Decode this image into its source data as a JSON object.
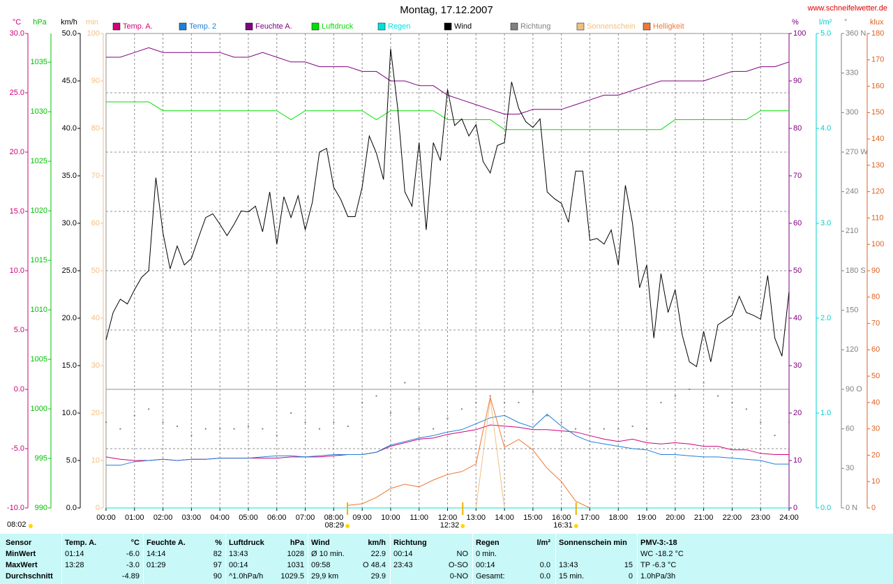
{
  "title": "Montag, 17.12.2007",
  "website": "www.schneifelwetter.de",
  "chart_data": {
    "type": "line",
    "x": [
      0,
      0.5,
      1,
      1.5,
      2,
      2.5,
      3,
      3.5,
      4,
      4.5,
      5,
      5.5,
      6,
      6.5,
      7,
      7.5,
      8,
      8.5,
      9,
      9.5,
      10,
      10.5,
      11,
      11.5,
      12,
      12.5,
      13,
      13.5,
      14,
      14.5,
      15,
      15.5,
      16,
      16.5,
      17,
      17.5,
      18,
      18.5,
      19,
      19.5,
      20,
      20.5,
      21,
      21.5,
      22,
      22.5,
      23,
      23.5,
      24
    ],
    "xlim": [
      0,
      24
    ],
    "xticks": [
      {
        "value": 0,
        "label": "00:00"
      },
      {
        "value": 1,
        "label": "01:00"
      },
      {
        "value": 2,
        "label": "02:00"
      },
      {
        "value": 3,
        "label": "03:00"
      },
      {
        "value": 4,
        "label": "04:00"
      },
      {
        "value": 5,
        "label": "05:00"
      },
      {
        "value": 6,
        "label": "06:00"
      },
      {
        "value": 7,
        "label": "07:00"
      },
      {
        "value": 8,
        "label": "08:00"
      },
      {
        "value": 9,
        "label": "09:00"
      },
      {
        "value": 10,
        "label": "10:00"
      },
      {
        "value": 11,
        "label": "11:00"
      },
      {
        "value": 12,
        "label": "12:00"
      },
      {
        "value": 13,
        "label": "13:00"
      },
      {
        "value": 14,
        "label": "14:00"
      },
      {
        "value": 15,
        "label": "15:00"
      },
      {
        "value": 16,
        "label": "16:00"
      },
      {
        "value": 17,
        "label": "17:00"
      },
      {
        "value": 18,
        "label": "18:00"
      },
      {
        "value": 19,
        "label": "19:00"
      },
      {
        "value": 20,
        "label": "20:00"
      },
      {
        "value": 21,
        "label": "21:00"
      },
      {
        "value": 22,
        "label": "22:00"
      },
      {
        "value": 23,
        "label": "23:00"
      },
      {
        "value": 24,
        "label": "24:00"
      }
    ],
    "xgrid": true,
    "axes": {
      "temp": {
        "label": "°C",
        "color": "#d0007a",
        "grid": true,
        "lim": [
          -10,
          30
        ],
        "ticks": [
          {
            "value": 30,
            "label": "30.0"
          },
          {
            "value": 25,
            "label": "25.0"
          },
          {
            "value": 20,
            "label": "20.0"
          },
          {
            "value": 15,
            "label": "15.0"
          },
          {
            "value": 10,
            "label": "10.0"
          },
          {
            "value": 5,
            "label": "5.0"
          },
          {
            "value": 0,
            "label": "0.0"
          },
          {
            "value": -5,
            "label": "-5.0"
          },
          {
            "value": -10,
            "label": "-10.0"
          }
        ]
      },
      "pressure": {
        "label": "hPa",
        "color": "#00c000",
        "lim": [
          990,
          1037.9
        ],
        "ticks": [
          1035,
          1030,
          1025,
          1020,
          1015,
          1010,
          1005,
          1000,
          995,
          990
        ]
      },
      "wind": {
        "label": "km/h",
        "color": "#000000",
        "lim": [
          0,
          50
        ],
        "ticks": [
          {
            "value": 50,
            "label": "50.0"
          },
          {
            "value": 45,
            "label": "45.0"
          },
          {
            "value": 40,
            "label": "40.0"
          },
          {
            "value": 35,
            "label": "35.0"
          },
          {
            "value": 30,
            "label": "30.0"
          },
          {
            "value": 25,
            "label": "25.0"
          },
          {
            "value": 20,
            "label": "20.0"
          },
          {
            "value": 15,
            "label": "15.0"
          },
          {
            "value": 10,
            "label": "10.0"
          },
          {
            "value": 5,
            "label": "5.0"
          },
          {
            "value": 0,
            "label": "0.0"
          }
        ]
      },
      "sun": {
        "label": "min",
        "color": "#f0c080",
        "lim": [
          0,
          100
        ],
        "ticks": [
          100,
          90,
          80,
          70,
          60,
          50,
          40,
          30,
          20,
          10,
          0
        ]
      },
      "humidity": {
        "label": "%",
        "color": "#800080",
        "lim": [
          0,
          100
        ],
        "ticks": [
          100,
          90,
          80,
          70,
          60,
          50,
          40,
          30,
          20,
          10,
          0
        ]
      },
      "rain": {
        "label": "l/m²",
        "color": "#00d0d0",
        "lim": [
          0,
          5
        ],
        "ticks": [
          {
            "value": 5,
            "label": "5.0"
          },
          {
            "value": 4,
            "label": "4.0"
          },
          {
            "value": 3,
            "label": "3.0"
          },
          {
            "value": 2,
            "label": "2.0"
          },
          {
            "value": 1,
            "label": "1.0"
          },
          {
            "value": 0,
            "label": "0.0"
          }
        ]
      },
      "direction": {
        "label": "°",
        "color": "#808080",
        "lim": [
          0,
          360
        ],
        "ticks": [
          {
            "value": 360,
            "label": "360 N"
          },
          330,
          300,
          {
            "value": 270,
            "label": "270 W"
          },
          240,
          210,
          {
            "value": 180,
            "label": "180 S"
          },
          150,
          120,
          {
            "value": 90,
            "label": "90 O"
          },
          60,
          30,
          {
            "value": 0,
            "label": "0 N"
          }
        ]
      },
      "light": {
        "label": "klux",
        "color": "#e06020",
        "lim": [
          0,
          180
        ],
        "ticks": [
          180,
          170,
          160,
          150,
          140,
          130,
          120,
          110,
          100,
          90,
          80,
          70,
          60,
          50,
          40,
          30,
          20,
          10,
          0
        ]
      }
    },
    "series": [
      {
        "name": "Temp. A.",
        "color": "#d0007a",
        "axis": "temp",
        "values": [
          -5.7,
          -5.9,
          -6.0,
          -6.0,
          -5.9,
          -6.0,
          -5.9,
          -5.9,
          -5.8,
          -5.8,
          -5.8,
          -5.8,
          -5.8,
          -5.7,
          -5.7,
          -5.7,
          -5.6,
          -5.5,
          -5.5,
          -5.3,
          -4.8,
          -4.5,
          -4.2,
          -4.1,
          -3.8,
          -3.6,
          -3.4,
          -3.0,
          -3.1,
          -3.2,
          -3.4,
          -3.4,
          -3.5,
          -3.6,
          -3.9,
          -4.2,
          -4.4,
          -4.2,
          -4.5,
          -4.6,
          -4.5,
          -4.6,
          -4.8,
          -4.8,
          -5.1,
          -5.1,
          -5.4,
          -5.5,
          -5.5
        ]
      },
      {
        "name": "Temp. 2",
        "color": "#1e7fd8",
        "axis": "temp",
        "values": [
          -6.4,
          -6.4,
          -6.1,
          -6.0,
          -5.9,
          -6.0,
          -5.9,
          -5.9,
          -5.8,
          -5.8,
          -5.8,
          -5.7,
          -5.6,
          -5.6,
          -5.7,
          -5.6,
          -5.5,
          -5.5,
          -5.5,
          -5.3,
          -4.7,
          -4.4,
          -4.1,
          -3.9,
          -3.6,
          -3.4,
          -2.9,
          -2.4,
          -2.2,
          -2.8,
          -3.2,
          -2.1,
          -3.1,
          -3.9,
          -4.4,
          -4.6,
          -4.8,
          -5.0,
          -5.1,
          -5.5,
          -5.5,
          -5.6,
          -5.7,
          -5.7,
          -5.8,
          -5.9,
          -6.0,
          -6.3,
          -6.3
        ]
      },
      {
        "name": "Feuchte A.",
        "color": "#800080",
        "axis": "humidity",
        "values": [
          95,
          95,
          96,
          97,
          96,
          96,
          96,
          96,
          96,
          95,
          95,
          96,
          95,
          94,
          94,
          93,
          93,
          93,
          92,
          92,
          90,
          90,
          89,
          89,
          87,
          86,
          85,
          84,
          83,
          83,
          84,
          84,
          84,
          85,
          86,
          87,
          87,
          88,
          89,
          90,
          90,
          90,
          90,
          91,
          92,
          92,
          93,
          93,
          94
        ]
      },
      {
        "name": "Luftdruck",
        "color": "#00e000",
        "axis": "pressure",
        "values": [
          1031.0,
          1031.0,
          1031.0,
          1031.0,
          1030.1,
          1030.1,
          1030.1,
          1030.1,
          1030.1,
          1030.1,
          1030.1,
          1030.1,
          1030.1,
          1029.2,
          1030.1,
          1030.1,
          1030.1,
          1030.1,
          1030.1,
          1029.2,
          1030.1,
          1030.1,
          1030.1,
          1030.1,
          1029.2,
          1029.2,
          1029.2,
          1029.2,
          1028.2,
          1028.2,
          1028.2,
          1028.2,
          1028.2,
          1028.2,
          1028.2,
          1028.2,
          1028.2,
          1028.2,
          1028.2,
          1028.2,
          1029.2,
          1029.2,
          1029.2,
          1029.2,
          1029.2,
          1029.2,
          1030.1,
          1030.1,
          1030.1
        ]
      },
      {
        "name": "Regen",
        "color": "#00e0e0",
        "axis": "rain",
        "values": [
          0,
          0,
          0,
          0,
          0,
          0,
          0,
          0,
          0,
          0,
          0,
          0,
          0,
          0,
          0,
          0,
          0,
          0,
          0,
          0,
          0,
          0,
          0,
          0,
          0,
          0,
          0,
          0,
          0,
          0,
          0,
          0,
          0,
          0,
          0,
          0,
          0,
          0,
          0,
          0,
          0,
          0,
          0,
          0,
          0,
          0,
          0,
          0,
          0
        ]
      },
      {
        "name": "Wind",
        "color": "#000000",
        "axis": "wind",
        "x": [
          0,
          0.25,
          0.5,
          0.75,
          1,
          1.25,
          1.5,
          1.75,
          2,
          2.25,
          2.5,
          2.75,
          3,
          3.25,
          3.5,
          3.75,
          4,
          4.25,
          4.5,
          4.75,
          5,
          5.25,
          5.5,
          5.75,
          6,
          6.25,
          6.5,
          6.75,
          7,
          7.25,
          7.5,
          7.75,
          8,
          8.25,
          8.5,
          8.75,
          9,
          9.25,
          9.5,
          9.75,
          10,
          10.25,
          10.5,
          10.75,
          11,
          11.25,
          11.5,
          11.75,
          12,
          12.25,
          12.5,
          12.75,
          13,
          13.25,
          13.5,
          13.75,
          14,
          14.25,
          14.5,
          14.75,
          15,
          15.25,
          15.5,
          15.75,
          16,
          16.25,
          16.5,
          16.75,
          17,
          17.25,
          17.5,
          17.75,
          18,
          18.25,
          18.5,
          18.75,
          19,
          19.25,
          19.5,
          19.75,
          20,
          20.25,
          20.5,
          20.75,
          21,
          21.25,
          21.5,
          21.75,
          22,
          22.25,
          22.5,
          22.75,
          23,
          23.25,
          23.5,
          23.75,
          24
        ],
        "values": [
          17.7,
          20.6,
          22.0,
          21.5,
          23.0,
          24.3,
          25.0,
          34.8,
          29.0,
          25.2,
          27.6,
          25.6,
          26.3,
          28.5,
          30.6,
          31.0,
          29.9,
          28.7,
          29.9,
          31.3,
          31.2,
          31.8,
          29.1,
          33.3,
          27.8,
          32.8,
          30.6,
          32.9,
          29.3,
          32.2,
          37.5,
          37.9,
          33.8,
          32.5,
          30.7,
          30.7,
          33.8,
          39.2,
          37.4,
          34.6,
          48.4,
          42.1,
          33.3,
          31.8,
          38.5,
          29.3,
          38.5,
          36.6,
          44.1,
          40.3,
          41.0,
          39.2,
          40.4,
          36.5,
          35.3,
          38.2,
          38.5,
          44.9,
          42.1,
          40.7,
          40.1,
          41.0,
          33.3,
          32.6,
          32.1,
          30.1,
          35.5,
          35.5,
          28.2,
          28.4,
          27.8,
          29.3,
          25.6,
          34.0,
          30.0,
          23.2,
          25.6,
          17.9,
          24.7,
          20.6,
          23.0,
          18.2,
          15.4,
          14.9,
          18.6,
          15.4,
          19.3,
          19.8,
          20.3,
          22.3,
          20.6,
          20.3,
          19.9,
          24.5,
          17.9,
          16.0,
          22.8
        ]
      },
      {
        "name": "Richtung",
        "color": "#808080",
        "axis": "direction",
        "marker": "dot",
        "values": [
          65,
          60,
          70,
          75,
          65,
          62,
          55,
          60,
          60,
          60,
          62,
          60,
          55,
          72,
          65,
          60,
          65,
          62,
          80,
          85,
          72,
          95,
          75,
          60,
          68,
          75,
          80,
          85,
          80,
          80,
          88,
          70,
          65,
          60,
          60,
          60,
          60,
          62,
          60,
          80,
          85,
          90,
          95,
          85,
          80,
          75,
          65,
          55,
          65
        ]
      },
      {
        "name": "Sonnenschein",
        "color": "#f0c080",
        "axis": "sun",
        "values": [
          null,
          null,
          null,
          null,
          null,
          null,
          null,
          null,
          null,
          null,
          null,
          null,
          null,
          null,
          null,
          null,
          null,
          null,
          null,
          null,
          null,
          null,
          null,
          null,
          null,
          null,
          0,
          23,
          0,
          null,
          null,
          null,
          null,
          null,
          null,
          null,
          null,
          null,
          null,
          null,
          null,
          null,
          null,
          null,
          null,
          null,
          null,
          null,
          null
        ]
      },
      {
        "name": "Helligkeit",
        "color": "#f07838",
        "axis": "light",
        "values": [
          null,
          null,
          null,
          null,
          null,
          null,
          null,
          null,
          null,
          null,
          null,
          null,
          null,
          null,
          null,
          null,
          null,
          1,
          1.6,
          4,
          7.4,
          9,
          8,
          10.6,
          12.7,
          13.8,
          16.7,
          42,
          23,
          26,
          22,
          15,
          10,
          2.6,
          0,
          null,
          null,
          null,
          null,
          null,
          null,
          null,
          null,
          null,
          null,
          null,
          null,
          null,
          null
        ]
      }
    ],
    "annotations": [
      {
        "x": 8.4833,
        "label": "08:29"
      },
      {
        "x": 12.5333,
        "label": "12:32"
      },
      {
        "x": 16.5167,
        "label": "16:31"
      }
    ],
    "left_time": "08:02"
  },
  "table": {
    "header": {
      "label": "Sensor",
      "columns": [
        {
          "left": "Temp. A.",
          "right": "°C"
        },
        {
          "left": "Feuchte A.",
          "right": "%"
        },
        {
          "left": "Luftdruck",
          "right": "hPa"
        },
        {
          "left": "Wind",
          "right": "km/h"
        },
        {
          "left": "Richtung"
        },
        {
          "left": "Regen",
          "right": "l/m²"
        },
        {
          "left": "Sonnenschein min"
        },
        {
          "left": "PMV-3:-18"
        }
      ]
    },
    "rows": [
      {
        "label": "MinWert",
        "cells": [
          {
            "left": "01:14",
            "right": "-6.0"
          },
          {
            "left": "14:14",
            "right": "82"
          },
          {
            "left": "13:43",
            "right": "1028"
          },
          {
            "left": "Ø 10 min.",
            "right": "22.9"
          },
          {
            "left": "00:14",
            "right": "NO"
          },
          {
            "left": "0 min."
          },
          {},
          {
            "left": "WC -18.2 °C"
          }
        ]
      },
      {
        "label": "MaxWert",
        "cells": [
          {
            "left": "13:28",
            "right": "-3.0"
          },
          {
            "left": "01:29",
            "right": "97"
          },
          {
            "left": "00:14",
            "right": "1031"
          },
          {
            "left": "09:58",
            "right": "O 48.4"
          },
          {
            "left": "23:43",
            "right": "O-SO"
          },
          {
            "left": "00:14",
            "right": "0.0"
          },
          {
            "left": "13:43",
            "right": "15"
          },
          {
            "left": "TP -6.3 °C"
          }
        ]
      },
      {
        "label": "Durchschnitt",
        "cells": [
          {
            "right": "-4.89"
          },
          {
            "right": "90"
          },
          {
            "left": "^1.0hPa/h",
            "right": "1029.5"
          },
          {
            "left": "29,9 km",
            "right": "29.9"
          },
          {
            "right": "0-NO"
          },
          {
            "left": "Gesamt:",
            "right": "0.0"
          },
          {
            "left": "15 min.",
            "right": "0"
          },
          {
            "left": "1.0hPa/3h"
          }
        ]
      }
    ]
  }
}
